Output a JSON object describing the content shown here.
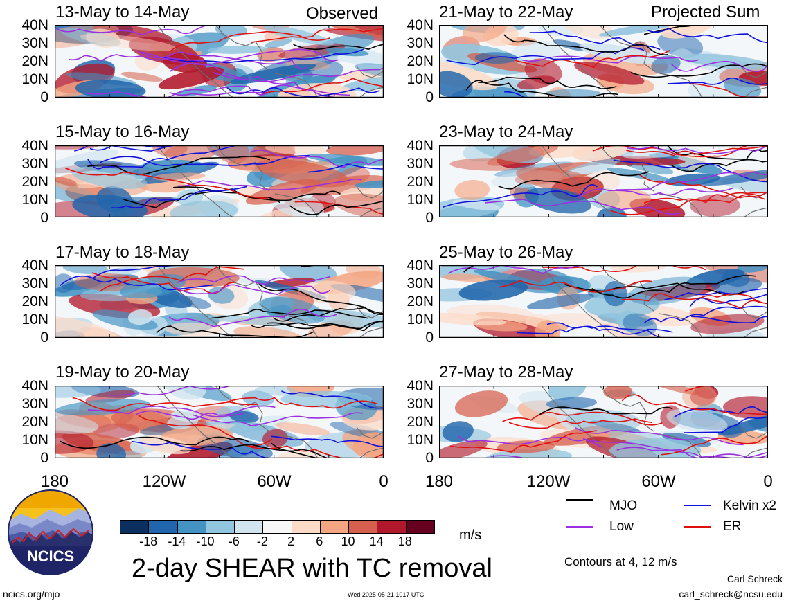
{
  "headers": {
    "observed": "Observed",
    "projected": "Projected Sum"
  },
  "panels": {
    "left": [
      "13-May to 14-May",
      "15-May to 16-May",
      "17-May to 18-May",
      "19-May to 20-May"
    ],
    "right": [
      "21-May to 22-May",
      "23-May to 24-May",
      "25-May to 26-May",
      "27-May to 28-May"
    ]
  },
  "lat_labels": [
    "40N",
    "30N",
    "20N",
    "10N",
    "0"
  ],
  "lon_labels": [
    "180",
    "120W",
    "60W",
    "0"
  ],
  "colorbar": {
    "colors": [
      "#0b2f5e",
      "#2166ac",
      "#4393c3",
      "#92c5de",
      "#d1e5f0",
      "#f7f7f7",
      "#fddbc7",
      "#f4a582",
      "#d6604d",
      "#b2182b",
      "#67001f"
    ],
    "ticks": [
      "-18",
      "-14",
      "-10",
      "-6",
      "-2",
      "2",
      "6",
      "10",
      "14",
      "18"
    ],
    "unit": "m/s"
  },
  "title": "2-day SHEAR with TC removal",
  "legend": {
    "items": [
      {
        "label": "MJO",
        "color": "#000000"
      },
      {
        "label": "Kelvin x2",
        "color": "#1010dd"
      },
      {
        "label": "Low",
        "color": "#9a30e0"
      },
      {
        "label": "ER",
        "color": "#e01010"
      }
    ],
    "contours_note": "Contours at 4, 12 m/s"
  },
  "logo": {
    "text": "NCICS"
  },
  "footer": {
    "url": "ncics.org/mjo",
    "timestamp": "Wed 2025-05-21 1017 UTC",
    "author": "Carl Schreck",
    "email": "carl_schreck@ncsu.edu"
  }
}
